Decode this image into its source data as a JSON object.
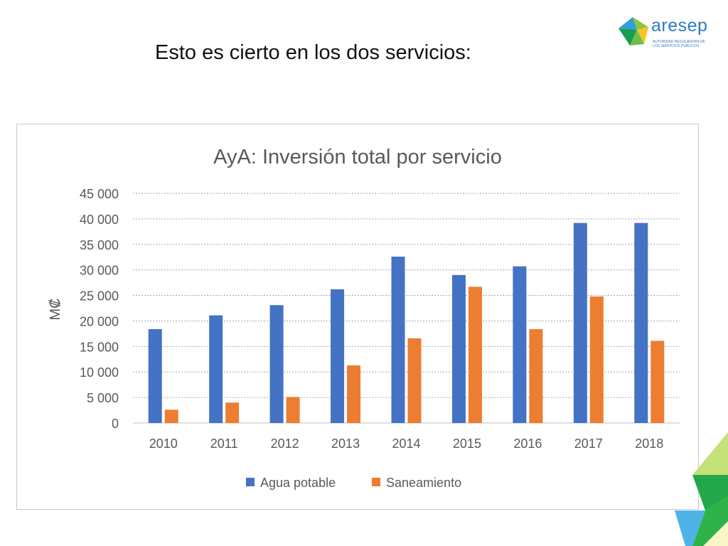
{
  "slide": {
    "title": "Esto es cierto en los dos servicios:"
  },
  "logo": {
    "name": "aresep",
    "subtitle": "AUTORIDAD REGULADORA DE LOS SERVICIOS PÚBLICOS"
  },
  "colors": {
    "series1": "#4472c4",
    "series2": "#ed7d31",
    "grid": "#a6a6a6",
    "text": "#595959"
  },
  "chart_data": {
    "type": "bar",
    "title": "AyA: Inversión total por servicio",
    "xlabel": "",
    "ylabel": "M₡",
    "categories": [
      "2010",
      "2011",
      "2012",
      "2013",
      "2014",
      "2015",
      "2016",
      "2017",
      "2018"
    ],
    "series": [
      {
        "name": "Agua potable",
        "values": [
          18400,
          21100,
          23100,
          26200,
          32600,
          29000,
          30700,
          39200,
          39200
        ]
      },
      {
        "name": "Saneamiento",
        "values": [
          2600,
          4000,
          5100,
          11300,
          16600,
          26700,
          18400,
          24800,
          16100
        ]
      }
    ],
    "ylim": [
      0,
      45000
    ],
    "yticks": [
      0,
      5000,
      10000,
      15000,
      20000,
      25000,
      30000,
      35000,
      40000,
      45000
    ],
    "ytick_labels": [
      "0",
      "5 000",
      "10 000",
      "15 000",
      "20 000",
      "25 000",
      "30 000",
      "35 000",
      "40 000",
      "45 000"
    ],
    "grid": true,
    "legend_position": "bottom"
  }
}
